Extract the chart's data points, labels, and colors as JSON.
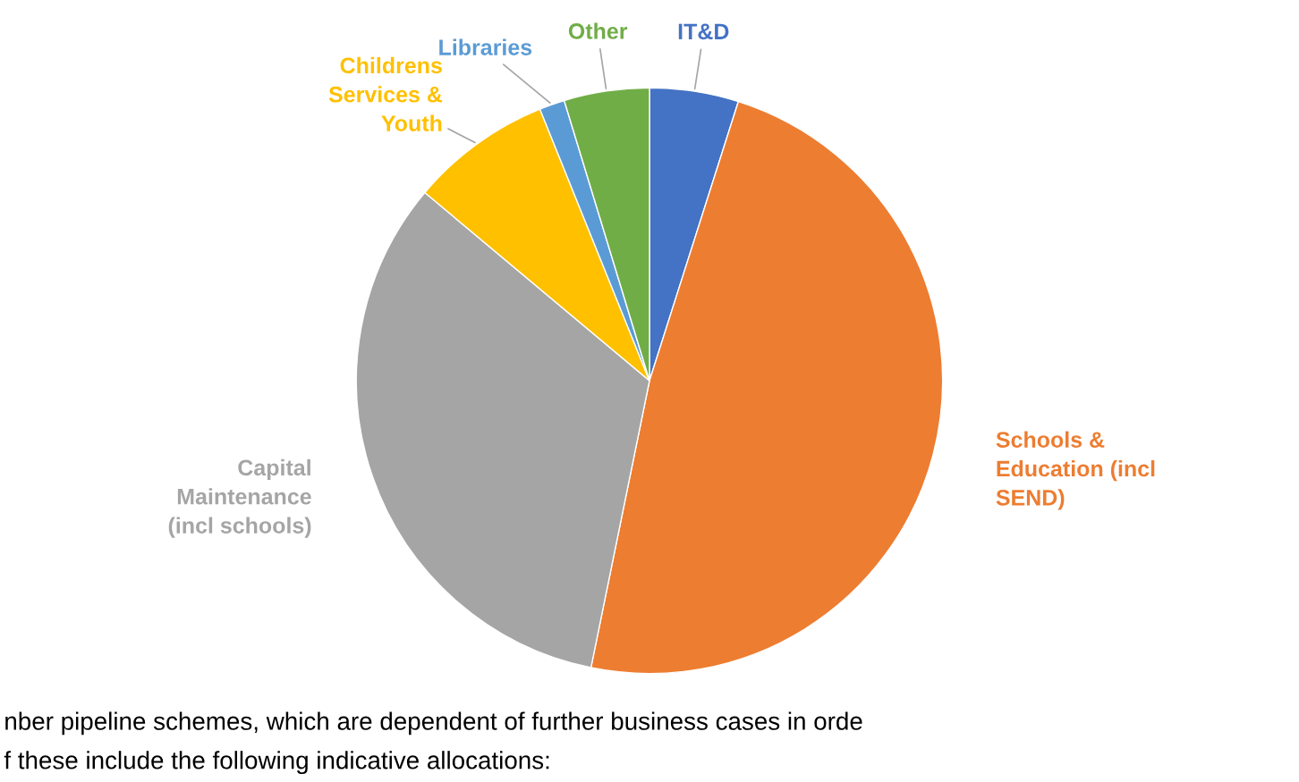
{
  "chart_data": {
    "type": "pie",
    "categories": [
      "IT&D",
      "Schools &\nEducation (incl\nSEND)",
      "Capital\nMaintenance\n(incl schools)",
      "Childrens\nServices &\nYouth",
      "Libraries",
      "Other"
    ],
    "values": [
      4.9,
      48.3,
      32.9,
      7.8,
      1.4,
      4.7
    ],
    "colors": [
      "#4472c4",
      "#ed7d31",
      "#a5a5a5",
      "#ffc000",
      "#5b9bd5",
      "#70ad47"
    ],
    "annotations": [
      "nber pipeline schemes, which are dependent of further business cases in orde",
      "f these include the following indicative allocations:"
    ]
  }
}
